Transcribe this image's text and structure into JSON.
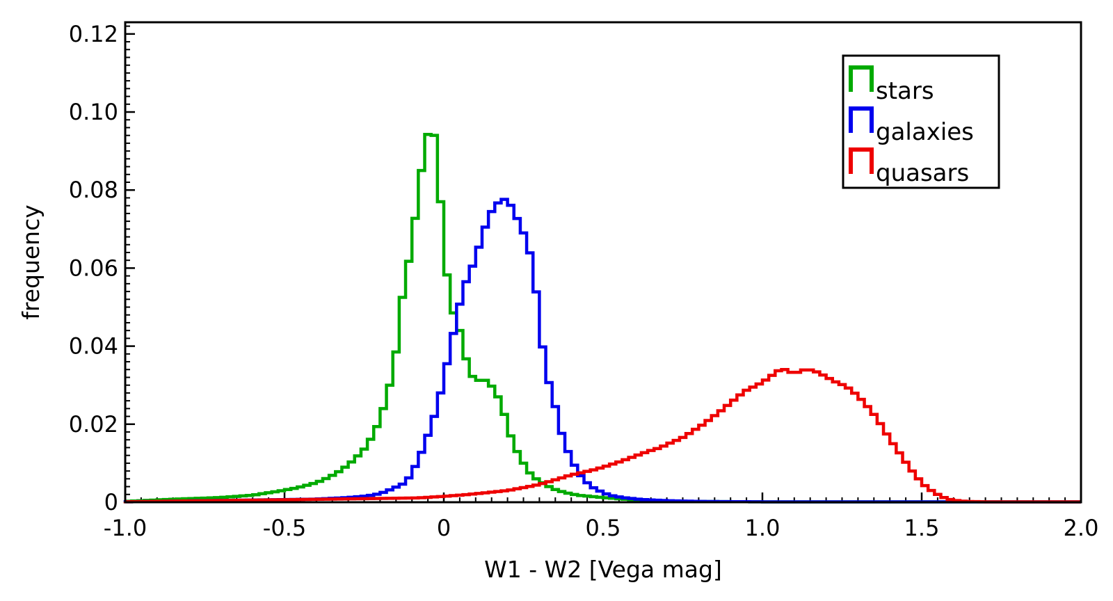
{
  "chart_data": {
    "type": "step-histogram",
    "xlabel": "W1 - W2 [Vega mag]",
    "ylabel": "frequency",
    "xlim": [
      -1.0,
      2.0
    ],
    "ylim": [
      0,
      0.123
    ],
    "bin_width": 0.02,
    "xticks": [
      -1.0,
      -0.5,
      0,
      0.5,
      1.0,
      1.5,
      2.0
    ],
    "xtick_labels": [
      "-1.0",
      "-0.5",
      "0",
      "0.5",
      "1.0",
      "1.5",
      "2.0"
    ],
    "yticks": [
      0,
      0.02,
      0.04,
      0.06,
      0.08,
      0.1,
      0.12
    ],
    "ytick_labels": [
      "0",
      "0.02",
      "0.04",
      "0.06",
      "0.08",
      "0.10",
      "0.12"
    ],
    "legend_position": "top-right",
    "series": [
      {
        "name": "stars",
        "color": "#00aa00",
        "points": [
          [
            -1.0,
            0.0002
          ],
          [
            -0.84,
            0.0008
          ],
          [
            -0.7,
            0.0012
          ],
          [
            -0.6,
            0.0018
          ],
          [
            -0.52,
            0.0028
          ],
          [
            -0.46,
            0.0037
          ],
          [
            -0.4,
            0.005
          ],
          [
            -0.36,
            0.0064
          ],
          [
            -0.32,
            0.0083
          ],
          [
            -0.28,
            0.011
          ],
          [
            -0.24,
            0.0145
          ],
          [
            -0.2,
            0.021
          ],
          [
            -0.18,
            0.027
          ],
          [
            -0.16,
            0.033
          ],
          [
            -0.14,
            0.044
          ],
          [
            -0.12,
            0.061
          ],
          [
            -0.1,
            0.0625
          ],
          [
            -0.08,
            0.083
          ],
          [
            -0.06,
            0.087
          ],
          [
            -0.04,
            0.1015
          ],
          [
            -0.02,
            0.0865
          ],
          [
            0.0,
            0.0675
          ],
          [
            0.02,
            0.049
          ],
          [
            0.04,
            0.048
          ],
          [
            0.06,
            0.04
          ],
          [
            0.08,
            0.0335
          ],
          [
            0.1,
            0.031
          ],
          [
            0.12,
            0.0315
          ],
          [
            0.14,
            0.031
          ],
          [
            0.16,
            0.0285
          ],
          [
            0.18,
            0.0255
          ],
          [
            0.2,
            0.0195
          ],
          [
            0.22,
            0.0145
          ],
          [
            0.24,
            0.0115
          ],
          [
            0.26,
            0.0085
          ],
          [
            0.28,
            0.0065
          ],
          [
            0.3,
            0.0055
          ],
          [
            0.32,
            0.0045
          ],
          [
            0.34,
            0.0035
          ],
          [
            0.38,
            0.0025
          ],
          [
            0.42,
            0.0018
          ],
          [
            0.5,
            0.0012
          ],
          [
            0.6,
            0.0006
          ],
          [
            0.7,
            0.0003
          ],
          [
            0.8,
            0.0002
          ],
          [
            1.0,
            0.0001
          ],
          [
            1.8,
            0.0001
          ]
        ]
      },
      {
        "name": "galaxies",
        "color": "#0000ee",
        "points": [
          [
            -1.0,
            0.0001
          ],
          [
            -0.4,
            0.0008
          ],
          [
            -0.3,
            0.0012
          ],
          [
            -0.24,
            0.0016
          ],
          [
            -0.2,
            0.0022
          ],
          [
            -0.16,
            0.0035
          ],
          [
            -0.12,
            0.005
          ],
          [
            -0.1,
            0.0075
          ],
          [
            -0.08,
            0.0108
          ],
          [
            -0.06,
            0.0148
          ],
          [
            -0.04,
            0.0195
          ],
          [
            -0.02,
            0.0245
          ],
          [
            0.0,
            0.0315
          ],
          [
            0.02,
            0.0395
          ],
          [
            0.04,
            0.047
          ],
          [
            0.06,
            0.0545
          ],
          [
            0.08,
            0.0585
          ],
          [
            0.1,
            0.0625
          ],
          [
            0.12,
            0.0682
          ],
          [
            0.14,
            0.0728
          ],
          [
            0.16,
            0.0762
          ],
          [
            0.18,
            0.0772
          ],
          [
            0.2,
            0.078
          ],
          [
            0.22,
            0.0742
          ],
          [
            0.24,
            0.0712
          ],
          [
            0.26,
            0.0668
          ],
          [
            0.28,
            0.061
          ],
          [
            0.3,
            0.0468
          ],
          [
            0.32,
            0.0328
          ],
          [
            0.34,
            0.0285
          ],
          [
            0.36,
            0.0205
          ],
          [
            0.38,
            0.0148
          ],
          [
            0.4,
            0.0112
          ],
          [
            0.42,
            0.0078
          ],
          [
            0.44,
            0.0058
          ],
          [
            0.46,
            0.0042
          ],
          [
            0.48,
            0.0032
          ],
          [
            0.5,
            0.0025
          ],
          [
            0.52,
            0.0018
          ],
          [
            0.56,
            0.0012
          ],
          [
            0.62,
            0.0007
          ],
          [
            0.7,
            0.0004
          ],
          [
            0.8,
            0.0002
          ],
          [
            1.0,
            0.0001
          ],
          [
            1.66,
            0.0001
          ]
        ]
      },
      {
        "name": "quasars",
        "color": "#ee0000",
        "points": [
          [
            -1.0,
            0.0001
          ],
          [
            -0.08,
            0.0011
          ],
          [
            0.0,
            0.0015
          ],
          [
            0.08,
            0.002
          ],
          [
            0.14,
            0.0025
          ],
          [
            0.2,
            0.003
          ],
          [
            0.24,
            0.0036
          ],
          [
            0.28,
            0.0042
          ],
          [
            0.32,
            0.005
          ],
          [
            0.36,
            0.006
          ],
          [
            0.4,
            0.007
          ],
          [
            0.44,
            0.0077
          ],
          [
            0.48,
            0.0085
          ],
          [
            0.52,
            0.0095
          ],
          [
            0.56,
            0.0106
          ],
          [
            0.6,
            0.0118
          ],
          [
            0.64,
            0.013
          ],
          [
            0.68,
            0.014
          ],
          [
            0.7,
            0.0148
          ],
          [
            0.72,
            0.0155
          ],
          [
            0.74,
            0.0162
          ],
          [
            0.76,
            0.017
          ],
          [
            0.78,
            0.0182
          ],
          [
            0.8,
            0.0192
          ],
          [
            0.82,
            0.0203
          ],
          [
            0.84,
            0.0216
          ],
          [
            0.86,
            0.0228
          ],
          [
            0.88,
            0.0241
          ],
          [
            0.9,
            0.0255
          ],
          [
            0.92,
            0.0268
          ],
          [
            0.94,
            0.0282
          ],
          [
            0.96,
            0.0292
          ],
          [
            0.98,
            0.0298
          ],
          [
            1.0,
            0.0308
          ],
          [
            1.02,
            0.0318
          ],
          [
            1.04,
            0.0332
          ],
          [
            1.06,
            0.0342
          ],
          [
            1.08,
            0.0338
          ],
          [
            1.1,
            0.0328
          ],
          [
            1.12,
            0.0338
          ],
          [
            1.14,
            0.034
          ],
          [
            1.16,
            0.0338
          ],
          [
            1.18,
            0.033
          ],
          [
            1.2,
            0.0322
          ],
          [
            1.22,
            0.0312
          ],
          [
            1.24,
            0.0305
          ],
          [
            1.26,
            0.0298
          ],
          [
            1.28,
            0.0287
          ],
          [
            1.3,
            0.0272
          ],
          [
            1.32,
            0.0255
          ],
          [
            1.34,
            0.0235
          ],
          [
            1.36,
            0.0215
          ],
          [
            1.38,
            0.0188
          ],
          [
            1.4,
            0.0162
          ],
          [
            1.42,
            0.0138
          ],
          [
            1.44,
            0.0115
          ],
          [
            1.46,
            0.009
          ],
          [
            1.48,
            0.007
          ],
          [
            1.5,
            0.005
          ],
          [
            1.52,
            0.0035
          ],
          [
            1.54,
            0.0025
          ],
          [
            1.56,
            0.0015
          ],
          [
            1.58,
            0.0009
          ],
          [
            1.6,
            0.0005
          ],
          [
            1.64,
            0.0002
          ],
          [
            1.7,
            0.0001
          ]
        ]
      }
    ]
  }
}
